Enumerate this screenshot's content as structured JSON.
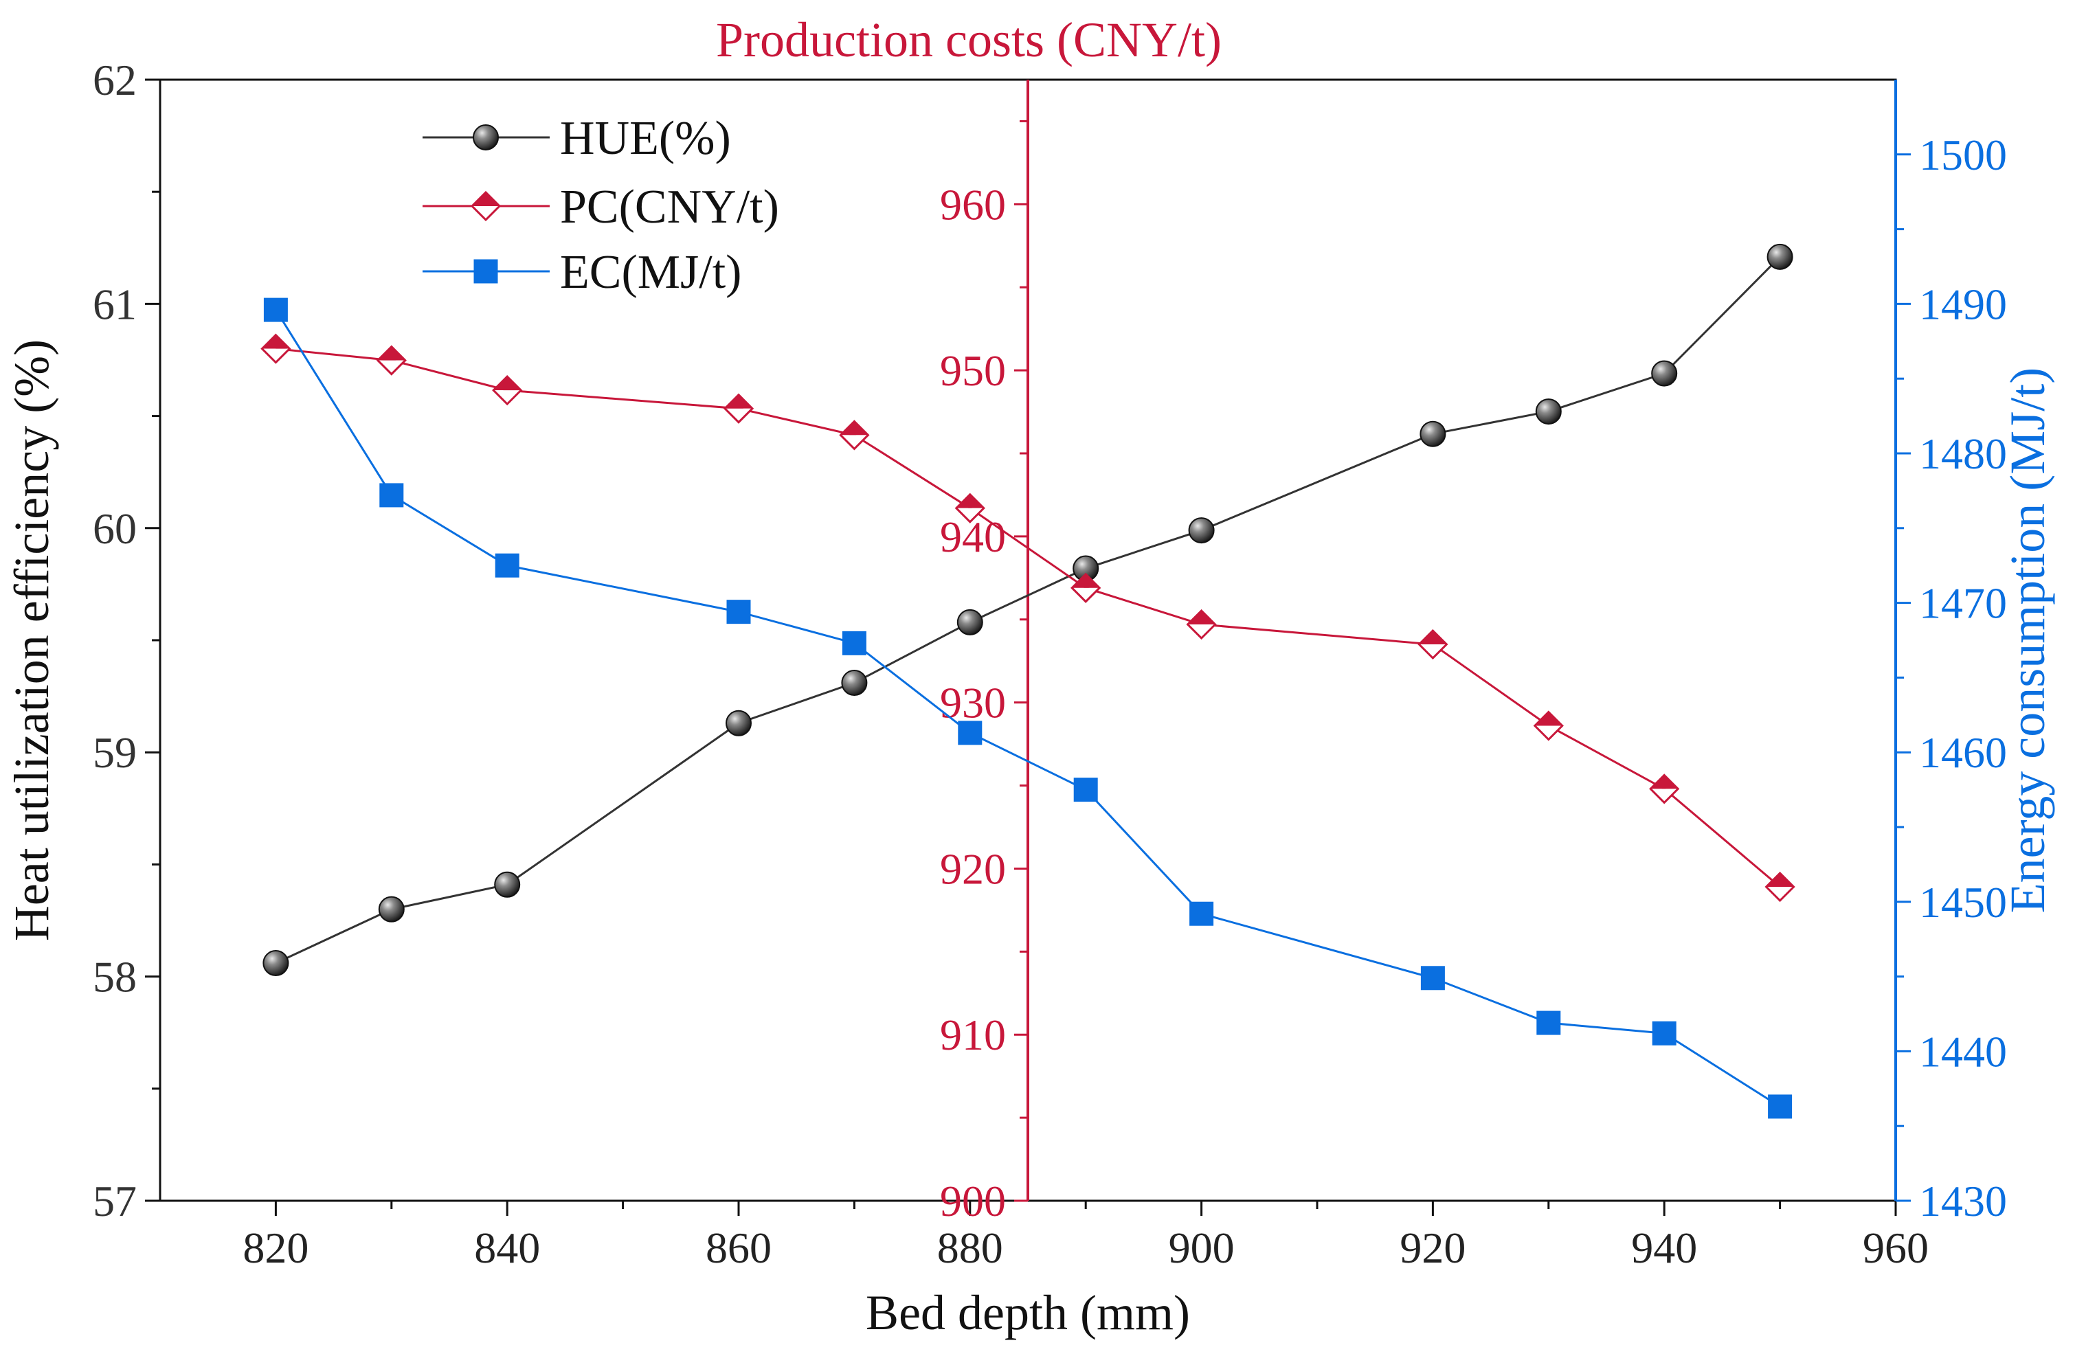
{
  "chart_data": {
    "type": "line",
    "xlabel": "Bed depth (mm)",
    "x_ticks": [
      820,
      840,
      860,
      880,
      900,
      920,
      940,
      960
    ],
    "xlim": [
      810,
      960
    ],
    "axes": {
      "left": {
        "label": "Heat utilization efficiency (%)",
        "ylim": [
          57,
          62
        ],
        "ticks": [
          57,
          58,
          59,
          60,
          61,
          62
        ],
        "color": "#222222"
      },
      "middle": {
        "label": "Production costs (CNY/t)",
        "ylim": [
          900,
          967.5
        ],
        "ticks": [
          900,
          910,
          920,
          930,
          940,
          950,
          960
        ],
        "position_x": 885,
        "color": "#c8173a"
      },
      "right": {
        "label": "Energy consumption (MJ/t)",
        "ylim": [
          1430,
          1505
        ],
        "ticks": [
          1430,
          1440,
          1450,
          1460,
          1470,
          1480,
          1490,
          1500
        ],
        "color": "#0a6fe0"
      }
    },
    "series": [
      {
        "name": "HUE(%)",
        "axis": "left",
        "marker": "sphere",
        "color": "#3a3a3a",
        "x": [
          820,
          830,
          840,
          860,
          870,
          880,
          890,
          900,
          920,
          930,
          940,
          950
        ],
        "values": [
          58.06,
          58.3,
          58.41,
          59.13,
          59.31,
          59.58,
          59.82,
          59.99,
          60.42,
          60.52,
          60.69,
          61.21
        ]
      },
      {
        "name": "PC(CNY/t)",
        "axis": "middle",
        "marker": "diamond-half",
        "color": "#c8173a",
        "x": [
          820,
          830,
          840,
          860,
          870,
          880,
          890,
          900,
          920,
          930,
          940,
          950
        ],
        "values": [
          951.3,
          950.6,
          948.8,
          947.7,
          946.1,
          941.7,
          936.9,
          934.7,
          933.5,
          928.6,
          924.8,
          918.9
        ]
      },
      {
        "name": "EC(MJ/t)",
        "axis": "right",
        "marker": "square",
        "color": "#0a6fe0",
        "x": [
          820,
          830,
          840,
          860,
          870,
          880,
          890,
          900,
          920,
          930,
          940,
          950
        ],
        "values": [
          1489.6,
          1477.2,
          1472.5,
          1469.4,
          1467.3,
          1461.3,
          1457.5,
          1449.2,
          1444.9,
          1441.9,
          1441.2,
          1436.3
        ]
      }
    ],
    "legend": {
      "position": "top-left",
      "entries": [
        "HUE(%)",
        "PC(CNY/t)",
        "EC(MJ/t)"
      ]
    }
  }
}
